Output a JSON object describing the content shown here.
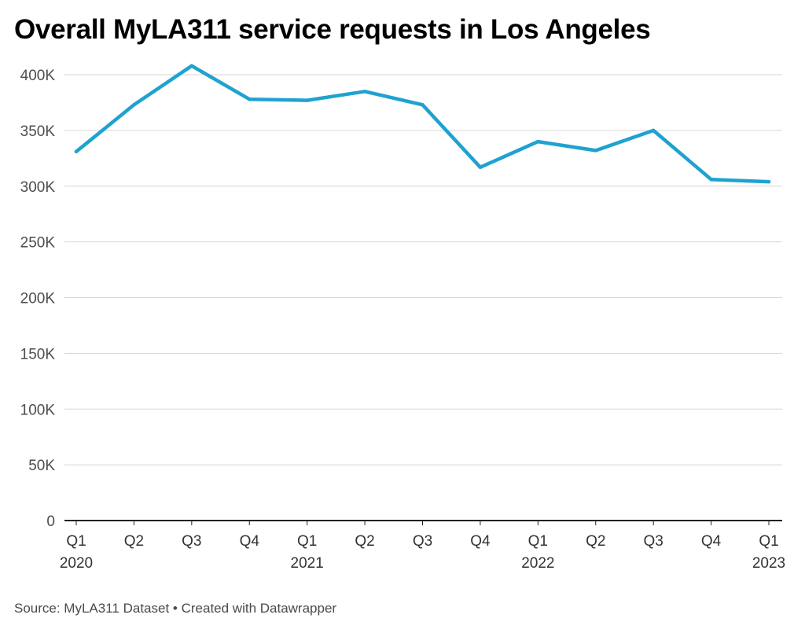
{
  "title": "Overall MyLA311 service requests in Los Angeles",
  "footer": {
    "source": "Source: MyLA311 Dataset",
    "separator": " • ",
    "credit": "Created with Datawrapper"
  },
  "colors": {
    "line": "#1fa2d0",
    "grid": "#d6d6d6",
    "axis": "#222222"
  },
  "chart_data": {
    "type": "line",
    "title": "Overall MyLA311 service requests in Los Angeles",
    "xlabel": "",
    "ylabel": "",
    "ylim": [
      0,
      400000
    ],
    "yticks": [
      0,
      50000,
      100000,
      150000,
      200000,
      250000,
      300000,
      350000,
      400000
    ],
    "ytick_labels": [
      "0",
      "50K",
      "100K",
      "150K",
      "200K",
      "250K",
      "300K",
      "350K",
      "400K"
    ],
    "categories": [
      "Q1",
      "Q2",
      "Q3",
      "Q4",
      "Q1",
      "Q2",
      "Q3",
      "Q4",
      "Q1",
      "Q2",
      "Q3",
      "Q4",
      "Q1"
    ],
    "years": [
      "2020",
      "",
      "",
      "",
      "2021",
      "",
      "",
      "",
      "2022",
      "",
      "",
      "",
      "2023"
    ],
    "values": [
      331000,
      373000,
      408000,
      378000,
      377000,
      385000,
      373000,
      317000,
      340000,
      332000,
      350000,
      306000,
      304000
    ],
    "grid": true,
    "legend": "none"
  }
}
